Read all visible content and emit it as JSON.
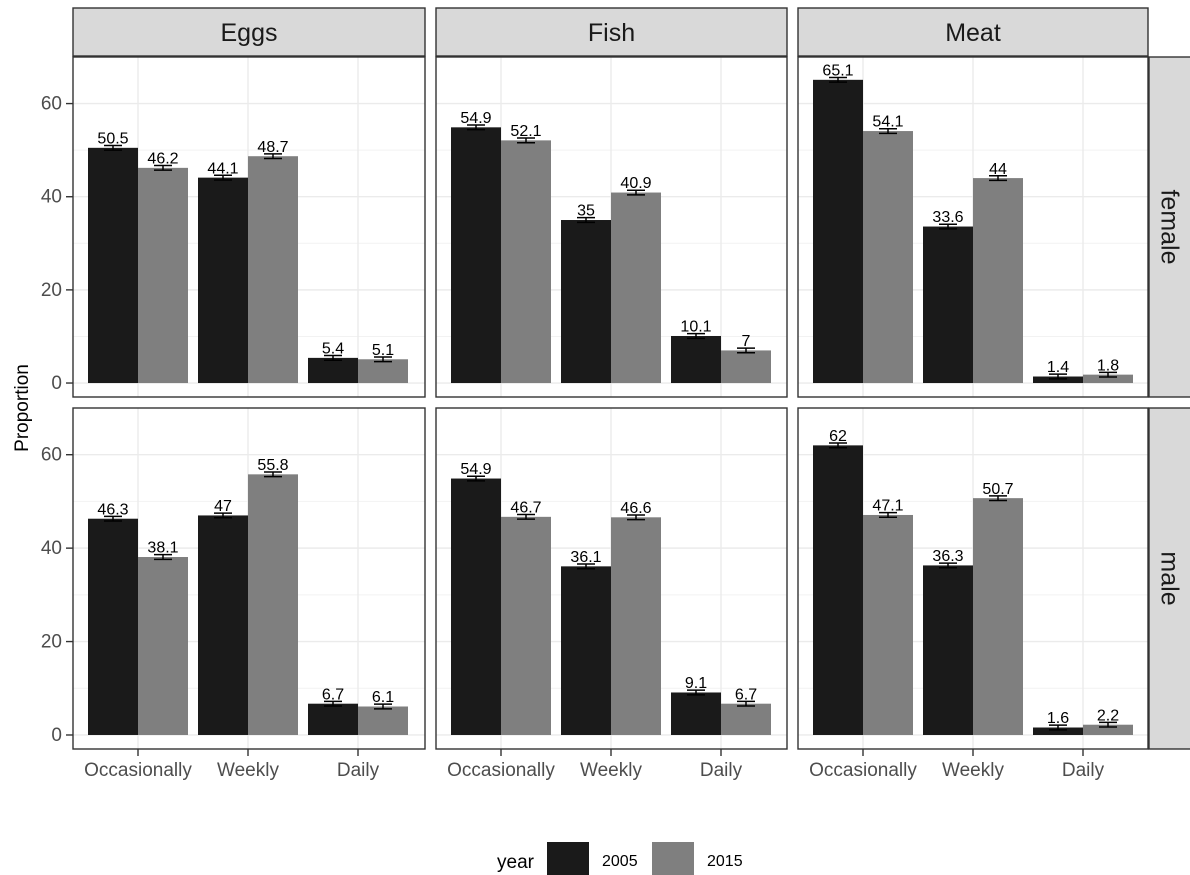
{
  "chart_data": {
    "type": "bar",
    "ylabel": "Proportion",
    "xlabel": "",
    "ylim": [
      -3,
      70
    ],
    "y_ticks": [
      0,
      20,
      40,
      60
    ],
    "categories": [
      "Occasionally",
      "Weekly",
      "Daily"
    ],
    "facet_columns": [
      "Eggs",
      "Fish",
      "Meat"
    ],
    "facet_rows": [
      "female",
      "male"
    ],
    "legend": {
      "title": "year",
      "position": "bottom",
      "entries": [
        {
          "label": "2005",
          "color": "#1a1a1a"
        },
        {
          "label": "2015",
          "color": "#7f7f7f"
        }
      ]
    },
    "panels": [
      {
        "row": "female",
        "column": "Eggs",
        "series": [
          {
            "year": "2005",
            "values": [
              50.5,
              44.1,
              5.4
            ],
            "value_labels": [
              "50.5",
              "44.1",
              "5.4"
            ]
          },
          {
            "year": "2015",
            "values": [
              46.2,
              48.7,
              5.1
            ],
            "value_labels": [
              "46.2",
              "48.7",
              "5.1"
            ]
          }
        ]
      },
      {
        "row": "female",
        "column": "Fish",
        "series": [
          {
            "year": "2005",
            "values": [
              54.9,
              35,
              10.1
            ],
            "value_labels": [
              "54.9",
              "35",
              "10.1"
            ]
          },
          {
            "year": "2015",
            "values": [
              52.1,
              40.9,
              7
            ],
            "value_labels": [
              "52.1",
              "40.9",
              "7"
            ]
          }
        ]
      },
      {
        "row": "female",
        "column": "Meat",
        "series": [
          {
            "year": "2005",
            "values": [
              65.1,
              33.6,
              1.4
            ],
            "value_labels": [
              "65.1",
              "33.6",
              "1.4"
            ]
          },
          {
            "year": "2015",
            "values": [
              54.1,
              44,
              1.8
            ],
            "value_labels": [
              "54.1",
              "44",
              "1.8"
            ]
          }
        ]
      },
      {
        "row": "male",
        "column": "Eggs",
        "series": [
          {
            "year": "2005",
            "values": [
              46.3,
              47,
              6.7
            ],
            "value_labels": [
              "46.3",
              "47",
              "6.7"
            ]
          },
          {
            "year": "2015",
            "values": [
              38.1,
              55.8,
              6.1
            ],
            "value_labels": [
              "38.1",
              "55.8",
              "6.1"
            ]
          }
        ]
      },
      {
        "row": "male",
        "column": "Fish",
        "series": [
          {
            "year": "2005",
            "values": [
              54.9,
              36.1,
              9.1
            ],
            "value_labels": [
              "54.9",
              "36.1",
              "9.1"
            ]
          },
          {
            "year": "2015",
            "values": [
              46.7,
              46.6,
              6.7
            ],
            "value_labels": [
              "46.7",
              "46.6",
              "6.7"
            ]
          }
        ]
      },
      {
        "row": "male",
        "column": "Meat",
        "series": [
          {
            "year": "2005",
            "values": [
              62,
              36.3,
              1.6
            ],
            "value_labels": [
              "62",
              "36.3",
              "1.6"
            ]
          },
          {
            "year": "2015",
            "values": [
              47.1,
              50.7,
              2.2
            ],
            "value_labels": [
              "47.1",
              "50.7",
              "2.2"
            ]
          }
        ]
      }
    ],
    "grid": true,
    "error_bars": true,
    "error_bar_halfwidth": 0.5
  }
}
